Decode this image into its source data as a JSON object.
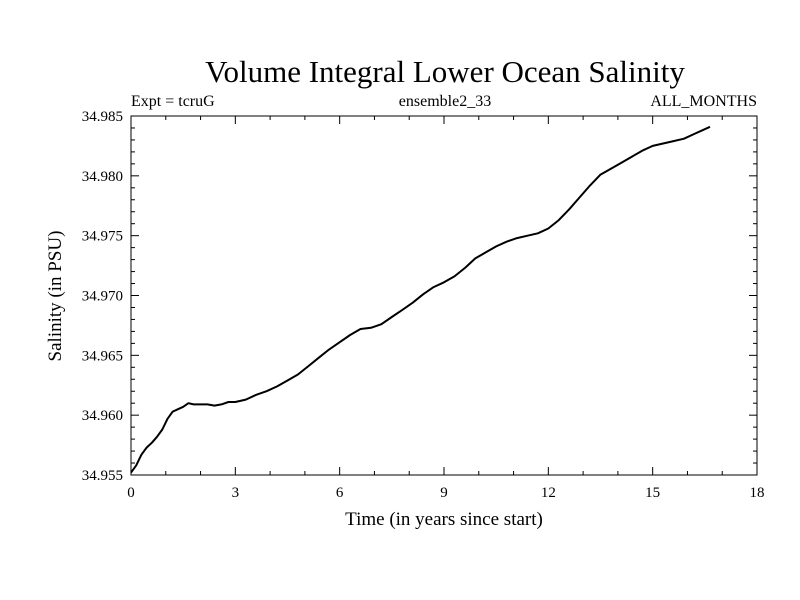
{
  "chart_data": {
    "type": "line",
    "title": "Volume Integral Lower Ocean Salinity",
    "subtitle_left": "Expt = tcruG",
    "subtitle_center": "ensemble2_33",
    "subtitle_right": "ALL_MONTHS",
    "xlabel": "Time (in years since start)",
    "ylabel": "Salinity (in PSU)",
    "xlim": [
      0,
      18
    ],
    "ylim": [
      34.955,
      34.985
    ],
    "xticks": [
      0,
      3,
      6,
      9,
      12,
      15,
      18
    ],
    "xtick_labels": [
      "0",
      "3",
      "6",
      "9",
      "12",
      "15",
      "18"
    ],
    "yticks": [
      34.955,
      34.96,
      34.965,
      34.97,
      34.975,
      34.98,
      34.985
    ],
    "ytick_labels": [
      "34.955",
      "34.960",
      "34.965",
      "34.970",
      "34.975",
      "34.980",
      "34.985"
    ],
    "grid": false,
    "series": [
      {
        "color": "#000000",
        "x": [
          0.0,
          0.15,
          0.3,
          0.45,
          0.6,
          0.75,
          0.9,
          1.05,
          1.2,
          1.35,
          1.5,
          1.65,
          1.8,
          2.0,
          2.2,
          2.4,
          2.6,
          2.8,
          3.0,
          3.3,
          3.6,
          3.9,
          4.2,
          4.5,
          4.8,
          5.1,
          5.4,
          5.7,
          6.0,
          6.3,
          6.6,
          6.9,
          7.2,
          7.5,
          7.8,
          8.1,
          8.4,
          8.7,
          9.0,
          9.3,
          9.6,
          9.9,
          10.2,
          10.5,
          10.8,
          11.1,
          11.4,
          11.7,
          12.0,
          12.3,
          12.6,
          12.9,
          13.2,
          13.5,
          13.8,
          14.1,
          14.4,
          14.7,
          15.0,
          15.3,
          15.6,
          15.9,
          16.2,
          16.5,
          16.65
        ],
        "y": [
          34.9552,
          34.9558,
          34.9567,
          34.9573,
          34.9577,
          34.9582,
          34.9588,
          34.9597,
          34.9603,
          34.9605,
          34.9607,
          34.961,
          34.9609,
          34.9609,
          34.9609,
          34.9608,
          34.9609,
          34.9611,
          34.9611,
          34.9613,
          34.9617,
          34.962,
          34.9624,
          34.9629,
          34.9634,
          34.9641,
          34.9648,
          34.9655,
          34.9661,
          34.9667,
          34.9672,
          34.9673,
          34.9676,
          34.9682,
          34.9688,
          34.9694,
          34.9701,
          34.9707,
          34.9711,
          34.9716,
          34.9723,
          34.9731,
          34.9736,
          34.9741,
          34.9745,
          34.9748,
          34.975,
          34.9752,
          34.9756,
          34.9763,
          34.9772,
          34.9782,
          34.9792,
          34.9801,
          34.9806,
          34.9811,
          34.9816,
          34.9821,
          34.9825,
          34.9827,
          34.9829,
          34.9831,
          34.9835,
          34.9839,
          34.9841
        ]
      }
    ]
  }
}
